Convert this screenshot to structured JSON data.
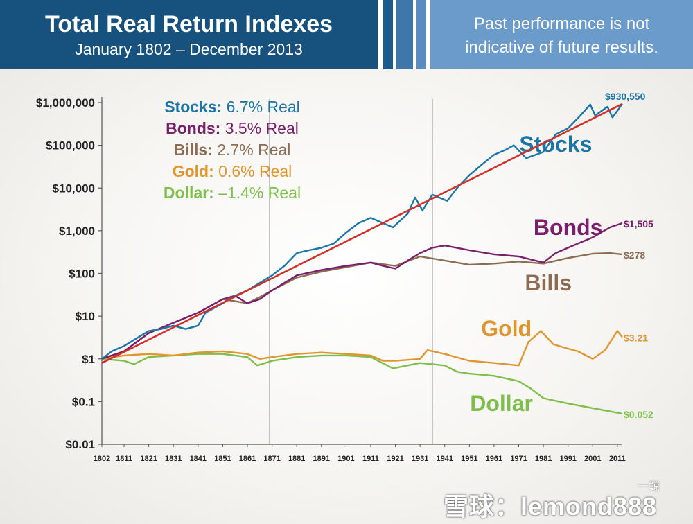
{
  "header": {
    "title": "Total Real Return Indexes",
    "subtitle": "January 1802 – December 2013",
    "disclaimer_line1": "Past performance is not",
    "disclaimer_line2": "indicative of future results."
  },
  "watermark": {
    "text": "雪球：lemond888",
    "corner": "一鲸"
  },
  "chart_data": {
    "type": "line",
    "title": "Total Real Return Indexes",
    "subtitle": "January 1802 – December 2013",
    "y_scale": "log",
    "ylim": [
      0.01,
      1000000
    ],
    "xlim": [
      1802,
      2013
    ],
    "yticks": [
      {
        "value": 1000000,
        "label": "$1,000,000"
      },
      {
        "value": 100000,
        "label": "$100,000"
      },
      {
        "value": 10000,
        "label": "$10,000"
      },
      {
        "value": 1000,
        "label": "$1,000"
      },
      {
        "value": 100,
        "label": "$100"
      },
      {
        "value": 10,
        "label": "$10"
      },
      {
        "value": 1,
        "label": "$1"
      },
      {
        "value": 0.1,
        "label": "$0.1"
      },
      {
        "value": 0.01,
        "label": "$0.01"
      }
    ],
    "xticks": [
      {
        "value": 1802,
        "label": "1802"
      },
      {
        "value": 1811,
        "label": "1811"
      },
      {
        "value": 1821,
        "label": "1821"
      },
      {
        "value": 1831,
        "label": "1831"
      },
      {
        "value": 1841,
        "label": "1841"
      },
      {
        "value": 1851,
        "label": "1851"
      },
      {
        "value": 1861,
        "label": "1861"
      },
      {
        "value": 1871,
        "label": "1871"
      },
      {
        "value": 1881,
        "label": "1881"
      },
      {
        "value": 1891,
        "label": "1891"
      },
      {
        "value": 1901,
        "label": "1901"
      },
      {
        "value": 1911,
        "label": "1911"
      },
      {
        "value": 1921,
        "label": "1921"
      },
      {
        "value": 1931,
        "label": "1931"
      },
      {
        "value": 1941,
        "label": "1941"
      },
      {
        "value": 1951,
        "label": "1951"
      },
      {
        "value": 1961,
        "label": "1961"
      },
      {
        "value": 1971,
        "label": "1971"
      },
      {
        "value": 1981,
        "label": "1981"
      },
      {
        "value": 1991,
        "label": "1991"
      },
      {
        "value": 2001,
        "label": "2001"
      },
      {
        "value": 2011,
        "label": "2011"
      }
    ],
    "reference_lines_x": [
      1870,
      1936
    ],
    "legend": [
      {
        "name": "Stocks:",
        "rate": "6.7% Real",
        "color": "#1b75a8"
      },
      {
        "name": "Bonds:",
        "rate": "3.5% Real",
        "color": "#7a1f6b"
      },
      {
        "name": "Bills:",
        "rate": "2.7% Real",
        "color": "#8c6d53"
      },
      {
        "name": "Gold:",
        "rate": "0.6% Real",
        "color": "#e0952e"
      },
      {
        "name": "Dollar:",
        "rate": "–1.4% Real",
        "color": "#7dbf4a"
      }
    ],
    "series": [
      {
        "name": "Stocks",
        "color": "#1b75a8",
        "label_year": 1986,
        "label_value": 70000,
        "end_label": "$930,550",
        "points": [
          [
            1802,
            1
          ],
          [
            1806,
            1.5
          ],
          [
            1811,
            2
          ],
          [
            1816,
            3
          ],
          [
            1821,
            4.5
          ],
          [
            1826,
            5
          ],
          [
            1831,
            6
          ],
          [
            1836,
            5
          ],
          [
            1841,
            6
          ],
          [
            1844,
            12
          ],
          [
            1851,
            20
          ],
          [
            1856,
            30
          ],
          [
            1861,
            40
          ],
          [
            1866,
            60
          ],
          [
            1871,
            90
          ],
          [
            1876,
            150
          ],
          [
            1881,
            300
          ],
          [
            1886,
            350
          ],
          [
            1891,
            400
          ],
          [
            1896,
            500
          ],
          [
            1901,
            900
          ],
          [
            1906,
            1500
          ],
          [
            1911,
            2000
          ],
          [
            1916,
            1500
          ],
          [
            1920,
            1200
          ],
          [
            1926,
            2500
          ],
          [
            1929,
            6000
          ],
          [
            1932,
            3000
          ],
          [
            1936,
            7000
          ],
          [
            1942,
            5000
          ],
          [
            1946,
            10000
          ],
          [
            1951,
            20000
          ],
          [
            1956,
            35000
          ],
          [
            1961,
            60000
          ],
          [
            1966,
            80000
          ],
          [
            1969,
            100000
          ],
          [
            1974,
            50000
          ],
          [
            1981,
            70000
          ],
          [
            1986,
            180000
          ],
          [
            1991,
            250000
          ],
          [
            1996,
            500000
          ],
          [
            2000,
            900000
          ],
          [
            2002,
            500000
          ],
          [
            2007,
            800000
          ],
          [
            2009,
            450000
          ],
          [
            2013,
            930550
          ]
        ]
      },
      {
        "name": "Bonds",
        "color": "#7a1f6b",
        "label_year": 1991,
        "label_value": 800,
        "end_label": "$1,505",
        "points": [
          [
            1802,
            1
          ],
          [
            1811,
            1.5
          ],
          [
            1821,
            4
          ],
          [
            1831,
            7
          ],
          [
            1841,
            12
          ],
          [
            1851,
            25
          ],
          [
            1856,
            30
          ],
          [
            1861,
            20
          ],
          [
            1866,
            25
          ],
          [
            1871,
            40
          ],
          [
            1881,
            90
          ],
          [
            1891,
            120
          ],
          [
            1901,
            150
          ],
          [
            1911,
            180
          ],
          [
            1916,
            150
          ],
          [
            1921,
            130
          ],
          [
            1926,
            200
          ],
          [
            1931,
            300
          ],
          [
            1936,
            400
          ],
          [
            1941,
            450
          ],
          [
            1951,
            350
          ],
          [
            1961,
            280
          ],
          [
            1971,
            250
          ],
          [
            1981,
            180
          ],
          [
            1986,
            300
          ],
          [
            1991,
            400
          ],
          [
            2001,
            700
          ],
          [
            2008,
            1200
          ],
          [
            2013,
            1505
          ]
        ]
      },
      {
        "name": "Bills",
        "color": "#8c6d53",
        "label_year": 1983,
        "label_value": 40,
        "end_label": "$278",
        "points": [
          [
            1802,
            1
          ],
          [
            1811,
            1.5
          ],
          [
            1821,
            4
          ],
          [
            1831,
            7
          ],
          [
            1841,
            12
          ],
          [
            1851,
            25
          ],
          [
            1861,
            20
          ],
          [
            1866,
            28
          ],
          [
            1871,
            40
          ],
          [
            1881,
            80
          ],
          [
            1891,
            110
          ],
          [
            1901,
            140
          ],
          [
            1911,
            180
          ],
          [
            1921,
            150
          ],
          [
            1931,
            250
          ],
          [
            1941,
            200
          ],
          [
            1951,
            160
          ],
          [
            1961,
            170
          ],
          [
            1971,
            190
          ],
          [
            1981,
            170
          ],
          [
            1991,
            230
          ],
          [
            2001,
            290
          ],
          [
            2008,
            300
          ],
          [
            2013,
            278
          ]
        ]
      },
      {
        "name": "Gold",
        "color": "#e0952e",
        "label_year": 1966,
        "label_value": 3.4,
        "end_label": "$3.21",
        "points": [
          [
            1802,
            1
          ],
          [
            1811,
            1.2
          ],
          [
            1821,
            1.3
          ],
          [
            1831,
            1.2
          ],
          [
            1841,
            1.4
          ],
          [
            1851,
            1.5
          ],
          [
            1861,
            1.3
          ],
          [
            1866,
            1
          ],
          [
            1871,
            1.1
          ],
          [
            1881,
            1.3
          ],
          [
            1891,
            1.4
          ],
          [
            1901,
            1.3
          ],
          [
            1911,
            1.2
          ],
          [
            1916,
            0.9
          ],
          [
            1921,
            0.9
          ],
          [
            1931,
            1
          ],
          [
            1934,
            1.6
          ],
          [
            1941,
            1.3
          ],
          [
            1951,
            0.9
          ],
          [
            1961,
            0.8
          ],
          [
            1971,
            0.7
          ],
          [
            1975,
            2.5
          ],
          [
            1980,
            4.5
          ],
          [
            1985,
            2.2
          ],
          [
            1990,
            1.8
          ],
          [
            1995,
            1.5
          ],
          [
            2001,
            1
          ],
          [
            2006,
            1.6
          ],
          [
            2011,
            4.5
          ],
          [
            2013,
            3.21
          ]
        ]
      },
      {
        "name": "Dollar",
        "color": "#7dbf4a",
        "label_year": 1964,
        "label_value": 0.06,
        "end_label": "$0.052",
        "points": [
          [
            1802,
            1
          ],
          [
            1811,
            0.9
          ],
          [
            1815,
            0.75
          ],
          [
            1821,
            1.1
          ],
          [
            1831,
            1.2
          ],
          [
            1841,
            1.3
          ],
          [
            1851,
            1.3
          ],
          [
            1861,
            1.1
          ],
          [
            1865,
            0.7
          ],
          [
            1871,
            0.9
          ],
          [
            1881,
            1.1
          ],
          [
            1891,
            1.2
          ],
          [
            1901,
            1.2
          ],
          [
            1911,
            1.1
          ],
          [
            1920,
            0.6
          ],
          [
            1931,
            0.8
          ],
          [
            1941,
            0.7
          ],
          [
            1946,
            0.5
          ],
          [
            1951,
            0.45
          ],
          [
            1961,
            0.4
          ],
          [
            1971,
            0.3
          ],
          [
            1976,
            0.2
          ],
          [
            1981,
            0.12
          ],
          [
            1991,
            0.09
          ],
          [
            2001,
            0.07
          ],
          [
            2013,
            0.052
          ]
        ]
      },
      {
        "name": "Trend",
        "color": "#d1312b",
        "points": [
          [
            1802,
            0.8
          ],
          [
            2013,
            930550
          ]
        ]
      }
    ]
  }
}
